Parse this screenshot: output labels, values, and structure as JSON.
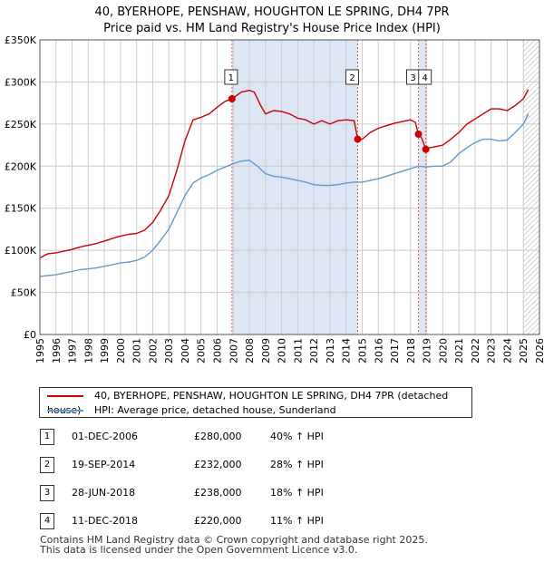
{
  "title_line1": "40, BYERHOPE, PENSHAW, HOUGHTON LE SPRING, DH4 7PR",
  "title_line2": "Price paid vs. HM Land Registry's House Price Index (HPI)",
  "colors": {
    "red": "#cc0000",
    "blue": "#6699cc",
    "shade": "#dde6f5",
    "grid": "#cccccc",
    "vline": "#e06060"
  },
  "chart_data": {
    "type": "line",
    "xlim": [
      1995,
      2026
    ],
    "ylim": [
      0,
      350000
    ],
    "x_ticks": [
      1995,
      1996,
      1997,
      1998,
      1999,
      2000,
      2001,
      2002,
      2003,
      2004,
      2005,
      2006,
      2007,
      2008,
      2009,
      2010,
      2011,
      2012,
      2013,
      2014,
      2015,
      2016,
      2017,
      2018,
      2019,
      2020,
      2021,
      2022,
      2023,
      2024,
      2025,
      2026
    ],
    "y_ticks": [
      0,
      50000,
      100000,
      150000,
      200000,
      250000,
      300000,
      350000
    ],
    "y_tick_labels": [
      "£0",
      "£50K",
      "£100K",
      "£150K",
      "£200K",
      "£250K",
      "£300K",
      "£350K"
    ],
    "shaded_ranges": [
      [
        2006.92,
        2014.72
      ],
      [
        2018.49,
        2018.95
      ]
    ],
    "hatched_from": 2025.0,
    "series": [
      {
        "name": "40, BYERHOPE, PENSHAW, HOUGHTON LE SPRING, DH4 7PR (detached house)",
        "color": "#cc0000",
        "points": [
          [
            1995.0,
            91000
          ],
          [
            1995.5,
            96000
          ],
          [
            1996.0,
            97000
          ],
          [
            1996.5,
            99000
          ],
          [
            1997.0,
            101000
          ],
          [
            1997.5,
            104000
          ],
          [
            1998.0,
            106000
          ],
          [
            1998.5,
            108000
          ],
          [
            1999.0,
            111000
          ],
          [
            1999.5,
            114000
          ],
          [
            2000.0,
            117000
          ],
          [
            2000.5,
            119000
          ],
          [
            2001.0,
            120000
          ],
          [
            2001.5,
            124000
          ],
          [
            2002.0,
            133000
          ],
          [
            2002.5,
            148000
          ],
          [
            2003.0,
            165000
          ],
          [
            2003.5,
            195000
          ],
          [
            2004.0,
            230000
          ],
          [
            2004.5,
            255000
          ],
          [
            2005.0,
            258000
          ],
          [
            2005.5,
            262000
          ],
          [
            2006.0,
            270000
          ],
          [
            2006.5,
            277000
          ],
          [
            2006.92,
            280000
          ],
          [
            2007.5,
            288000
          ],
          [
            2008.0,
            290000
          ],
          [
            2008.3,
            288000
          ],
          [
            2008.7,
            272000
          ],
          [
            2009.0,
            262000
          ],
          [
            2009.5,
            266000
          ],
          [
            2010.0,
            265000
          ],
          [
            2010.5,
            262000
          ],
          [
            2011.0,
            257000
          ],
          [
            2011.5,
            255000
          ],
          [
            2012.0,
            250000
          ],
          [
            2012.5,
            254000
          ],
          [
            2013.0,
            250000
          ],
          [
            2013.5,
            254000
          ],
          [
            2014.0,
            255000
          ],
          [
            2014.5,
            254000
          ],
          [
            2014.72,
            232000
          ],
          [
            2015.0,
            232000
          ],
          [
            2015.5,
            240000
          ],
          [
            2016.0,
            245000
          ],
          [
            2016.5,
            248000
          ],
          [
            2017.0,
            251000
          ],
          [
            2017.5,
            253000
          ],
          [
            2018.0,
            255000
          ],
          [
            2018.3,
            252000
          ],
          [
            2018.49,
            238000
          ],
          [
            2018.7,
            233000
          ],
          [
            2018.95,
            220000
          ],
          [
            2019.2,
            222000
          ],
          [
            2019.5,
            223000
          ],
          [
            2020.0,
            225000
          ],
          [
            2020.5,
            232000
          ],
          [
            2021.0,
            240000
          ],
          [
            2021.5,
            250000
          ],
          [
            2022.0,
            256000
          ],
          [
            2022.5,
            262000
          ],
          [
            2023.0,
            268000
          ],
          [
            2023.5,
            268000
          ],
          [
            2024.0,
            266000
          ],
          [
            2024.5,
            272000
          ],
          [
            2025.0,
            280000
          ],
          [
            2025.3,
            291000
          ]
        ]
      },
      {
        "name": "HPI: Average price, detached house, Sunderland",
        "color": "#6699cc",
        "points": [
          [
            1995.0,
            69000
          ],
          [
            1995.5,
            70000
          ],
          [
            1996.0,
            71000
          ],
          [
            1996.5,
            73000
          ],
          [
            1997.0,
            75000
          ],
          [
            1997.5,
            77000
          ],
          [
            1998.0,
            78000
          ],
          [
            1998.5,
            79000
          ],
          [
            1999.0,
            81000
          ],
          [
            1999.5,
            83000
          ],
          [
            2000.0,
            85000
          ],
          [
            2000.5,
            86000
          ],
          [
            2001.0,
            88000
          ],
          [
            2001.5,
            92000
          ],
          [
            2002.0,
            100000
          ],
          [
            2002.5,
            112000
          ],
          [
            2003.0,
            125000
          ],
          [
            2003.5,
            145000
          ],
          [
            2004.0,
            165000
          ],
          [
            2004.5,
            180000
          ],
          [
            2005.0,
            186000
          ],
          [
            2005.5,
            190000
          ],
          [
            2006.0,
            195000
          ],
          [
            2006.5,
            199000
          ],
          [
            2007.0,
            203000
          ],
          [
            2007.5,
            206000
          ],
          [
            2008.0,
            207000
          ],
          [
            2008.5,
            200000
          ],
          [
            2009.0,
            191000
          ],
          [
            2009.5,
            188000
          ],
          [
            2010.0,
            187000
          ],
          [
            2010.5,
            185000
          ],
          [
            2011.0,
            183000
          ],
          [
            2011.5,
            181000
          ],
          [
            2012.0,
            178000
          ],
          [
            2012.5,
            177000
          ],
          [
            2013.0,
            177000
          ],
          [
            2013.5,
            178000
          ],
          [
            2014.0,
            180000
          ],
          [
            2014.5,
            181000
          ],
          [
            2015.0,
            181000
          ],
          [
            2015.5,
            183000
          ],
          [
            2016.0,
            185000
          ],
          [
            2016.5,
            188000
          ],
          [
            2017.0,
            191000
          ],
          [
            2017.5,
            194000
          ],
          [
            2018.0,
            197000
          ],
          [
            2018.5,
            200000
          ],
          [
            2019.0,
            199000
          ],
          [
            2019.5,
            200000
          ],
          [
            2020.0,
            200000
          ],
          [
            2020.5,
            205000
          ],
          [
            2021.0,
            215000
          ],
          [
            2021.5,
            222000
          ],
          [
            2022.0,
            228000
          ],
          [
            2022.5,
            232000
          ],
          [
            2023.0,
            232000
          ],
          [
            2023.5,
            230000
          ],
          [
            2024.0,
            231000
          ],
          [
            2024.5,
            240000
          ],
          [
            2025.0,
            250000
          ],
          [
            2025.3,
            262000
          ]
        ]
      }
    ],
    "sales": [
      {
        "label": "1",
        "x": 2006.92,
        "y": 280000
      },
      {
        "label": "2",
        "x": 2014.72,
        "y": 232000
      },
      {
        "label": "3",
        "x": 2018.49,
        "y": 238000
      },
      {
        "label": "4",
        "x": 2018.95,
        "y": 220000
      }
    ]
  },
  "legend": {
    "property": "40, BYERHOPE, PENSHAW, HOUGHTON LE SPRING, DH4 7PR (detached house)",
    "hpi": "HPI: Average price, detached house, Sunderland"
  },
  "table": [
    {
      "num": "1",
      "date": "01-DEC-2006",
      "price": "£280,000",
      "hpi": "40% ↑ HPI"
    },
    {
      "num": "2",
      "date": "19-SEP-2014",
      "price": "£232,000",
      "hpi": "28% ↑ HPI"
    },
    {
      "num": "3",
      "date": "28-JUN-2018",
      "price": "£238,000",
      "hpi": "18% ↑ HPI"
    },
    {
      "num": "4",
      "date": "11-DEC-2018",
      "price": "£220,000",
      "hpi": "11% ↑ HPI"
    }
  ],
  "footer_line1": "Contains HM Land Registry data © Crown copyright and database right 2025.",
  "footer_line2": "This data is licensed under the Open Government Licence v3.0."
}
